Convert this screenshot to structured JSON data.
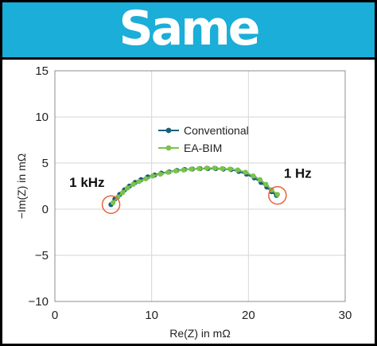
{
  "header": {
    "title": "Same"
  },
  "chart_data": {
    "type": "scatter",
    "xlabel": "Re(Z) in mΩ",
    "ylabel": "−Im(Z) in mΩ",
    "xlim": [
      0,
      30
    ],
    "ylim": [
      -10,
      15
    ],
    "xticks": [
      "0",
      "10",
      "20",
      "30"
    ],
    "yticks": [
      "15",
      "10",
      "5",
      "0",
      "−5",
      "−10"
    ],
    "grid": true,
    "legend_position": "upper-center",
    "series": [
      {
        "name": "Conventional",
        "color": "#1b5e7a",
        "x": [
          5.8,
          6.2,
          6.7,
          7.2,
          7.7,
          8.3,
          8.9,
          9.6,
          10.3,
          11.0,
          11.8,
          12.6,
          13.4,
          14.2,
          15.0,
          15.8,
          16.6,
          17.4,
          18.2,
          19.0,
          19.8,
          20.6,
          21.3,
          21.9,
          22.4,
          22.9
        ],
        "y": [
          0.5,
          1.1,
          1.6,
          2.1,
          2.5,
          2.9,
          3.2,
          3.5,
          3.7,
          3.9,
          4.05,
          4.2,
          4.3,
          4.35,
          4.4,
          4.4,
          4.4,
          4.35,
          4.3,
          4.1,
          3.8,
          3.4,
          2.9,
          2.4,
          1.9,
          1.5
        ]
      },
      {
        "name": "EA-BIM",
        "color": "#7bc24a",
        "x": [
          6.0,
          6.5,
          7.0,
          7.5,
          8.1,
          8.7,
          9.4,
          10.1,
          10.9,
          11.7,
          12.5,
          13.3,
          14.1,
          14.9,
          15.7,
          16.5,
          17.3,
          18.1,
          18.9,
          19.7,
          20.5,
          21.2,
          21.8,
          22.4,
          23.0
        ],
        "y": [
          0.7,
          1.3,
          1.8,
          2.3,
          2.7,
          3.0,
          3.3,
          3.6,
          3.8,
          4.0,
          4.15,
          4.25,
          4.35,
          4.4,
          4.45,
          4.45,
          4.4,
          4.35,
          4.25,
          4.0,
          3.6,
          3.2,
          2.7,
          2.1,
          1.6
        ]
      }
    ],
    "annotations": [
      {
        "text": "1 kHz",
        "x": 5.8,
        "y": 0.5,
        "color": "#e8643c"
      },
      {
        "text": "1 Hz",
        "x": 23.0,
        "y": 1.5,
        "color": "#e8643c"
      }
    ]
  }
}
